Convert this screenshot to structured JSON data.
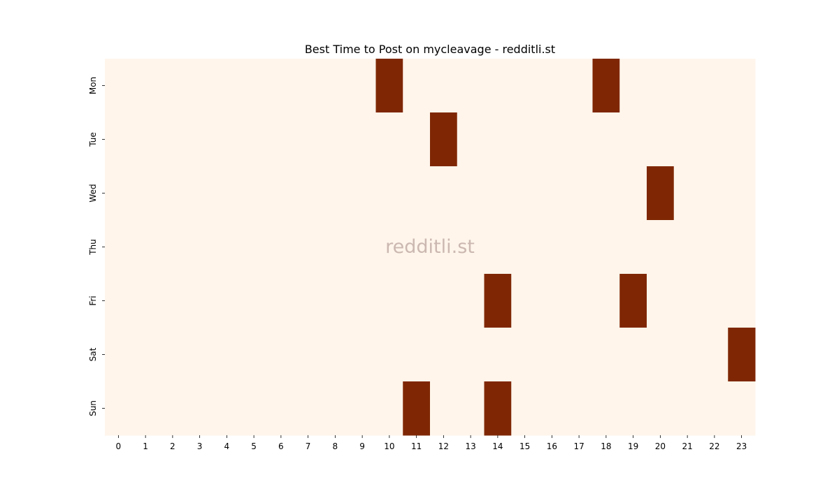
{
  "chart_data": {
    "type": "heatmap",
    "title": "Best Time to Post on mycleavage - redditli.st",
    "watermark": "redditli.st",
    "x_ticks": [
      "0",
      "1",
      "2",
      "3",
      "4",
      "5",
      "6",
      "7",
      "8",
      "9",
      "10",
      "11",
      "12",
      "13",
      "14",
      "15",
      "16",
      "17",
      "18",
      "19",
      "20",
      "21",
      "22",
      "23"
    ],
    "y_ticks": [
      "Mon",
      "Tue",
      "Wed",
      "Thu",
      "Fri",
      "Sat",
      "Sun"
    ],
    "matrix": [
      [
        0,
        0,
        0,
        0,
        0,
        0,
        0,
        0,
        0,
        0,
        1,
        0,
        0,
        0,
        0,
        0,
        0,
        0,
        1,
        0,
        0,
        0,
        0,
        0
      ],
      [
        0,
        0,
        0,
        0,
        0,
        0,
        0,
        0,
        0,
        0,
        0,
        0,
        1,
        0,
        0,
        0,
        0,
        0,
        0,
        0,
        0,
        0,
        0,
        0
      ],
      [
        0,
        0,
        0,
        0,
        0,
        0,
        0,
        0,
        0,
        0,
        0,
        0,
        0,
        0,
        0,
        0,
        0,
        0,
        0,
        0,
        1,
        0,
        0,
        0
      ],
      [
        0,
        0,
        0,
        0,
        0,
        0,
        0,
        0,
        0,
        0,
        0,
        0,
        0,
        0,
        0,
        0,
        0,
        0,
        0,
        0,
        0,
        0,
        0,
        0
      ],
      [
        0,
        0,
        0,
        0,
        0,
        0,
        0,
        0,
        0,
        0,
        0,
        0,
        0,
        0,
        1,
        0,
        0,
        0,
        0,
        1,
        0,
        0,
        0,
        0
      ],
      [
        0,
        0,
        0,
        0,
        0,
        0,
        0,
        0,
        0,
        0,
        0,
        0,
        0,
        0,
        0,
        0,
        0,
        0,
        0,
        0,
        0,
        0,
        0,
        1
      ],
      [
        0,
        0,
        0,
        0,
        0,
        0,
        0,
        0,
        0,
        0,
        0,
        1,
        0,
        0,
        1,
        0,
        0,
        0,
        0,
        0,
        0,
        0,
        0,
        0
      ]
    ],
    "colors": {
      "low": "#fff5eb",
      "high": "#7f2704"
    },
    "grid": false,
    "legend": "none"
  }
}
